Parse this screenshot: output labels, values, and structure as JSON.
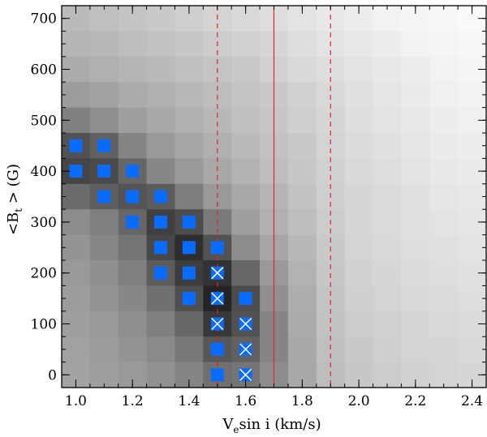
{
  "chart_data": {
    "type": "heatmap",
    "title": "",
    "xlabel": {
      "main": "V",
      "sub": "e",
      "rest": "sin i (km/s)"
    },
    "ylabel": {
      "pre": "<B",
      "sub": "t",
      "post": " > (G)"
    },
    "xlim": [
      0.95,
      2.45
    ],
    "ylim": [
      -25,
      725
    ],
    "x_ticks": [
      1.0,
      1.2,
      1.4,
      1.6,
      1.8,
      2.0,
      2.2,
      2.4
    ],
    "x_tick_labels": [
      "1.0",
      "1.2",
      "1.4",
      "1.6",
      "1.8",
      "2.0",
      "2.2",
      "2.4"
    ],
    "y_ticks": [
      0,
      100,
      200,
      300,
      400,
      500,
      600,
      700
    ],
    "y_tick_labels": [
      "0",
      "100",
      "200",
      "300",
      "400",
      "500",
      "600",
      "700"
    ],
    "x_cells": [
      1.0,
      1.1,
      1.2,
      1.3,
      1.4,
      1.5,
      1.6,
      1.7,
      1.8,
      1.9,
      2.0,
      2.1,
      2.2,
      2.3,
      2.4
    ],
    "y_cells": [
      0,
      50,
      100,
      150,
      200,
      250,
      300,
      350,
      400,
      450,
      500,
      550,
      600,
      650,
      700
    ],
    "grid_values_rows_top_to_bottom": [
      [
        0.73,
        0.75,
        0.77,
        0.79,
        0.81,
        0.83,
        0.85,
        0.87,
        0.89,
        0.91,
        0.93,
        0.95,
        0.96,
        0.97,
        0.98
      ],
      [
        0.71,
        0.72,
        0.74,
        0.76,
        0.78,
        0.8,
        0.82,
        0.84,
        0.87,
        0.89,
        0.91,
        0.93,
        0.95,
        0.96,
        0.97
      ],
      [
        0.67,
        0.69,
        0.71,
        0.73,
        0.75,
        0.77,
        0.79,
        0.82,
        0.85,
        0.87,
        0.89,
        0.91,
        0.93,
        0.95,
        0.96
      ],
      [
        0.61,
        0.64,
        0.67,
        0.69,
        0.72,
        0.74,
        0.77,
        0.79,
        0.82,
        0.85,
        0.88,
        0.9,
        0.92,
        0.94,
        0.95
      ],
      [
        0.5,
        0.56,
        0.62,
        0.66,
        0.69,
        0.72,
        0.75,
        0.78,
        0.81,
        0.84,
        0.87,
        0.89,
        0.91,
        0.93,
        0.94
      ],
      [
        0.32,
        0.38,
        0.52,
        0.6,
        0.65,
        0.69,
        0.73,
        0.76,
        0.79,
        0.83,
        0.86,
        0.88,
        0.9,
        0.92,
        0.93
      ],
      [
        0.27,
        0.29,
        0.4,
        0.53,
        0.6,
        0.66,
        0.7,
        0.74,
        0.78,
        0.82,
        0.85,
        0.87,
        0.89,
        0.91,
        0.92
      ],
      [
        0.42,
        0.37,
        0.33,
        0.36,
        0.49,
        0.6,
        0.66,
        0.71,
        0.76,
        0.81,
        0.84,
        0.86,
        0.88,
        0.9,
        0.91
      ],
      [
        0.55,
        0.5,
        0.4,
        0.25,
        0.3,
        0.48,
        0.62,
        0.69,
        0.74,
        0.8,
        0.84,
        0.86,
        0.88,
        0.89,
        0.9
      ],
      [
        0.58,
        0.53,
        0.46,
        0.28,
        0.18,
        0.32,
        0.55,
        0.65,
        0.72,
        0.79,
        0.83,
        0.85,
        0.87,
        0.88,
        0.89
      ],
      [
        0.6,
        0.56,
        0.5,
        0.36,
        0.24,
        0.2,
        0.4,
        0.6,
        0.7,
        0.78,
        0.82,
        0.84,
        0.86,
        0.87,
        0.88
      ],
      [
        0.61,
        0.58,
        0.53,
        0.44,
        0.31,
        0.14,
        0.3,
        0.56,
        0.68,
        0.77,
        0.81,
        0.83,
        0.85,
        0.86,
        0.87
      ],
      [
        0.62,
        0.6,
        0.56,
        0.5,
        0.4,
        0.22,
        0.32,
        0.52,
        0.67,
        0.76,
        0.8,
        0.82,
        0.84,
        0.85,
        0.86
      ],
      [
        0.63,
        0.61,
        0.58,
        0.54,
        0.47,
        0.34,
        0.38,
        0.52,
        0.66,
        0.75,
        0.79,
        0.81,
        0.83,
        0.84,
        0.85
      ],
      [
        0.64,
        0.62,
        0.6,
        0.57,
        0.52,
        0.44,
        0.46,
        0.55,
        0.66,
        0.74,
        0.78,
        0.8,
        0.82,
        0.83,
        0.84
      ]
    ],
    "markers": [
      {
        "x": 1.0,
        "y": 450
      },
      {
        "x": 1.1,
        "y": 450
      },
      {
        "x": 1.0,
        "y": 400
      },
      {
        "x": 1.1,
        "y": 400
      },
      {
        "x": 1.2,
        "y": 400
      },
      {
        "x": 1.1,
        "y": 350
      },
      {
        "x": 1.2,
        "y": 350
      },
      {
        "x": 1.3,
        "y": 350
      },
      {
        "x": 1.2,
        "y": 300
      },
      {
        "x": 1.3,
        "y": 300
      },
      {
        "x": 1.4,
        "y": 300
      },
      {
        "x": 1.3,
        "y": 250
      },
      {
        "x": 1.4,
        "y": 250
      },
      {
        "x": 1.5,
        "y": 250
      },
      {
        "x": 1.3,
        "y": 200
      },
      {
        "x": 1.4,
        "y": 200
      },
      {
        "x": 1.4,
        "y": 150
      },
      {
        "x": 1.6,
        "y": 150
      },
      {
        "x": 1.5,
        "y": 50
      },
      {
        "x": 1.5,
        "y": 0
      }
    ],
    "crossed_markers": [
      {
        "x": 1.5,
        "y": 200
      },
      {
        "x": 1.5,
        "y": 150
      },
      {
        "x": 1.5,
        "y": 100
      },
      {
        "x": 1.6,
        "y": 100
      },
      {
        "x": 1.6,
        "y": 50
      },
      {
        "x": 1.6,
        "y": 0
      }
    ],
    "vertical_lines": [
      {
        "x": 1.5,
        "style": "dashed"
      },
      {
        "x": 1.7,
        "style": "solid"
      },
      {
        "x": 1.9,
        "style": "dashed"
      }
    ],
    "colors": {
      "marker": "#0a6cff",
      "cross": "#ffffff",
      "line": "#e8222a",
      "axis": "#000000"
    },
    "grid": false,
    "legend": "none"
  }
}
